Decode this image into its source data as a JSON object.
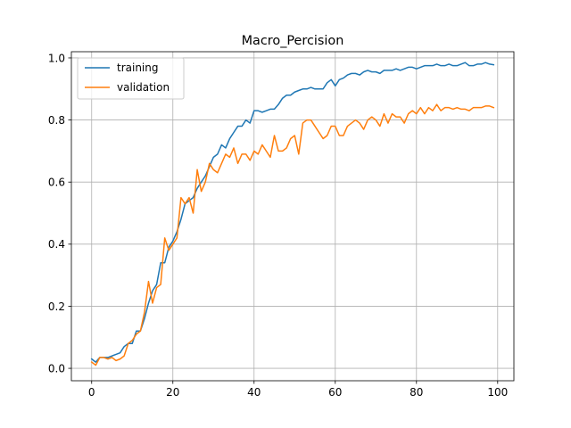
{
  "chart_data": {
    "type": "line",
    "title": "Macro_Percision",
    "xlabel": "",
    "ylabel": "",
    "xlim": [
      -5,
      104
    ],
    "ylim": [
      -0.04,
      1.02
    ],
    "xticks": [
      0,
      20,
      40,
      60,
      80,
      100
    ],
    "yticks": [
      0.0,
      0.2,
      0.4,
      0.6,
      0.8,
      1.0
    ],
    "xtick_labels": [
      "0",
      "20",
      "40",
      "60",
      "80",
      "100"
    ],
    "ytick_labels": [
      "0.0",
      "0.2",
      "0.4",
      "0.6",
      "0.8",
      "1.0"
    ],
    "grid": true,
    "legend_position": "top-left",
    "series": [
      {
        "name": "training",
        "color": "#1f77b4",
        "x": [
          0,
          1,
          2,
          3,
          4,
          5,
          6,
          7,
          8,
          9,
          10,
          11,
          12,
          13,
          14,
          15,
          16,
          17,
          18,
          19,
          20,
          21,
          22,
          23,
          24,
          25,
          26,
          27,
          28,
          29,
          30,
          31,
          32,
          33,
          34,
          35,
          36,
          37,
          38,
          39,
          40,
          41,
          42,
          43,
          44,
          45,
          46,
          47,
          48,
          49,
          50,
          51,
          52,
          53,
          54,
          55,
          56,
          57,
          58,
          59,
          60,
          61,
          62,
          63,
          64,
          65,
          66,
          67,
          68,
          69,
          70,
          71,
          72,
          73,
          74,
          75,
          76,
          77,
          78,
          79,
          80,
          81,
          82,
          83,
          84,
          85,
          86,
          87,
          88,
          89,
          90,
          91,
          92,
          93,
          94,
          95,
          96,
          97,
          98,
          99
        ],
        "values": [
          0.03,
          0.02,
          0.035,
          0.035,
          0.035,
          0.04,
          0.045,
          0.05,
          0.07,
          0.08,
          0.08,
          0.12,
          0.12,
          0.16,
          0.21,
          0.25,
          0.27,
          0.34,
          0.34,
          0.39,
          0.41,
          0.44,
          0.48,
          0.53,
          0.54,
          0.55,
          0.58,
          0.6,
          0.62,
          0.65,
          0.68,
          0.69,
          0.72,
          0.71,
          0.74,
          0.76,
          0.78,
          0.78,
          0.8,
          0.79,
          0.83,
          0.83,
          0.825,
          0.83,
          0.835,
          0.835,
          0.85,
          0.87,
          0.88,
          0.88,
          0.89,
          0.895,
          0.9,
          0.9,
          0.905,
          0.9,
          0.9,
          0.9,
          0.92,
          0.93,
          0.91,
          0.93,
          0.935,
          0.945,
          0.95,
          0.95,
          0.945,
          0.955,
          0.96,
          0.955,
          0.955,
          0.95,
          0.96,
          0.96,
          0.96,
          0.965,
          0.96,
          0.965,
          0.97,
          0.97,
          0.965,
          0.97,
          0.975,
          0.975,
          0.975,
          0.98,
          0.975,
          0.975,
          0.98,
          0.975,
          0.975,
          0.98,
          0.985,
          0.975,
          0.975,
          0.98,
          0.98,
          0.985,
          0.98,
          0.978
        ]
      },
      {
        "name": "validation",
        "color": "#ff7f0e",
        "x": [
          0,
          1,
          2,
          3,
          4,
          5,
          6,
          7,
          8,
          9,
          10,
          11,
          12,
          13,
          14,
          15,
          16,
          17,
          18,
          19,
          20,
          21,
          22,
          23,
          24,
          25,
          26,
          27,
          28,
          29,
          30,
          31,
          32,
          33,
          34,
          35,
          36,
          37,
          38,
          39,
          40,
          41,
          42,
          43,
          44,
          45,
          46,
          47,
          48,
          49,
          50,
          51,
          52,
          53,
          54,
          55,
          56,
          57,
          58,
          59,
          60,
          61,
          62,
          63,
          64,
          65,
          66,
          67,
          68,
          69,
          70,
          71,
          72,
          73,
          74,
          75,
          76,
          77,
          78,
          79,
          80,
          81,
          82,
          83,
          84,
          85,
          86,
          87,
          88,
          89,
          90,
          91,
          92,
          93,
          94,
          95,
          96,
          97,
          98,
          99
        ],
        "values": [
          0.02,
          0.01,
          0.035,
          0.035,
          0.03,
          0.035,
          0.025,
          0.03,
          0.04,
          0.08,
          0.09,
          0.11,
          0.12,
          0.18,
          0.28,
          0.21,
          0.26,
          0.27,
          0.42,
          0.38,
          0.4,
          0.42,
          0.55,
          0.53,
          0.55,
          0.5,
          0.64,
          0.57,
          0.6,
          0.66,
          0.64,
          0.63,
          0.66,
          0.69,
          0.68,
          0.71,
          0.66,
          0.69,
          0.69,
          0.67,
          0.7,
          0.69,
          0.72,
          0.7,
          0.68,
          0.75,
          0.7,
          0.7,
          0.71,
          0.74,
          0.75,
          0.69,
          0.79,
          0.8,
          0.8,
          0.78,
          0.76,
          0.74,
          0.75,
          0.78,
          0.78,
          0.75,
          0.75,
          0.78,
          0.79,
          0.8,
          0.79,
          0.77,
          0.8,
          0.81,
          0.8,
          0.78,
          0.82,
          0.79,
          0.82,
          0.81,
          0.81,
          0.79,
          0.82,
          0.83,
          0.82,
          0.84,
          0.82,
          0.84,
          0.83,
          0.85,
          0.83,
          0.84,
          0.84,
          0.835,
          0.84,
          0.835,
          0.835,
          0.83,
          0.84,
          0.84,
          0.84,
          0.845,
          0.845,
          0.84
        ]
      }
    ]
  }
}
